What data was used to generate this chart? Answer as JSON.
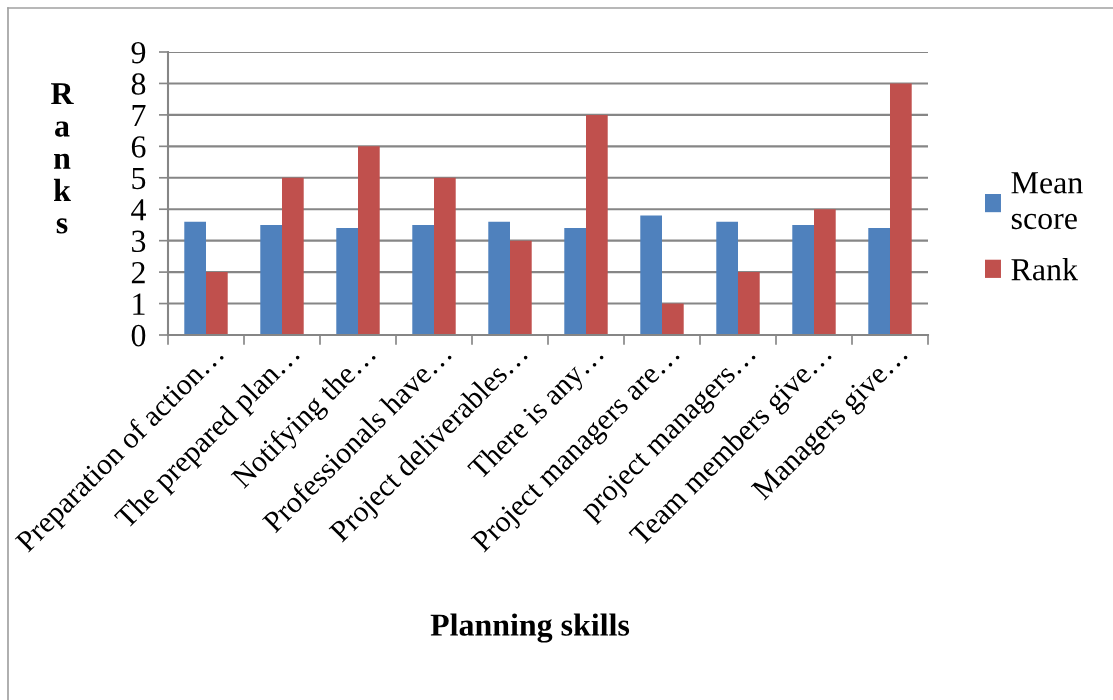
{
  "chart_data": {
    "type": "bar",
    "xlabel": "Planning skills",
    "ylabel": "Ranks",
    "categories": [
      "Preparation of action…",
      "The prepared plan…",
      "Notifying the…",
      "Professionals have…",
      "Project deliverables…",
      "There is any…",
      "Project managers are…",
      "project managers…",
      "Team members give…",
      "Managers give…"
    ],
    "series": [
      {
        "name": "Mean score",
        "color": "#4f81bd",
        "values": [
          3.6,
          3.5,
          3.4,
          3.5,
          3.6,
          3.4,
          3.8,
          3.6,
          3.5,
          3.4
        ]
      },
      {
        "name": "Rank",
        "color": "#c0504d",
        "values": [
          2,
          5,
          6,
          5,
          3,
          7,
          1,
          2,
          4,
          8
        ]
      }
    ],
    "ylim": [
      0,
      9
    ],
    "yticks": [
      0,
      1,
      2,
      3,
      4,
      5,
      6,
      7,
      8,
      9
    ],
    "grid": "y",
    "legend": "right"
  }
}
